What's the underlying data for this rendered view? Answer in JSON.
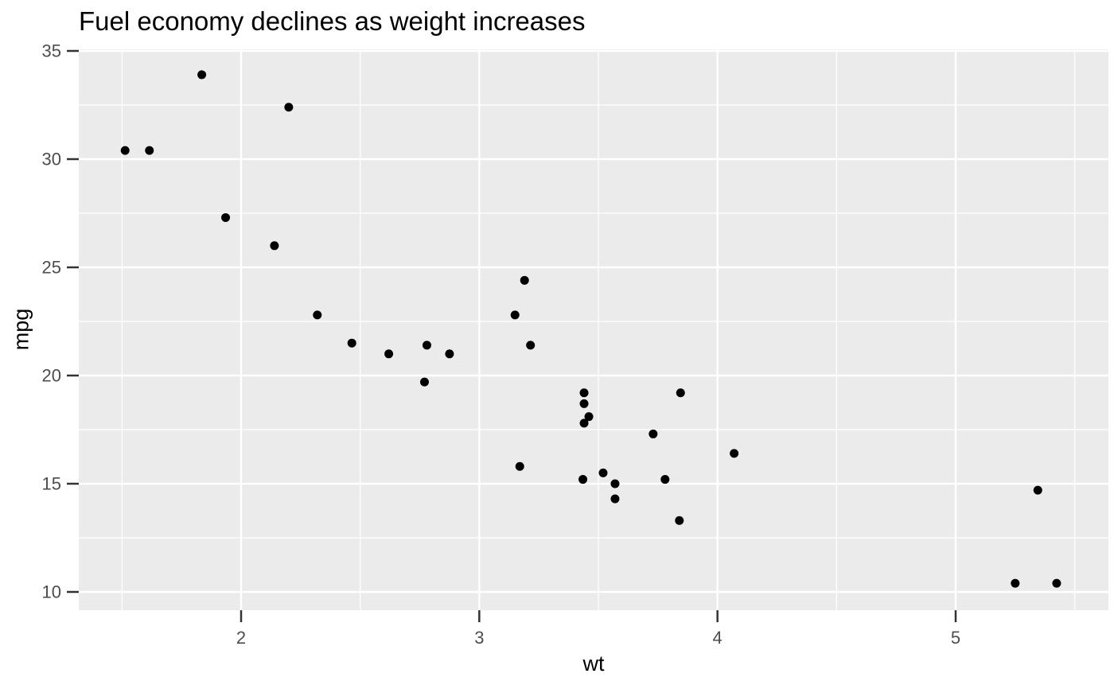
{
  "chart_data": {
    "type": "scatter",
    "title": "Fuel economy declines as weight increases",
    "xlabel": "wt",
    "ylabel": "mpg",
    "xlim": [
      1.3185,
      5.6414
    ],
    "ylim": [
      9.154,
      35.074
    ],
    "x_major_ticks": [
      2,
      3,
      4,
      5
    ],
    "x_minor_ticks": [
      1.5,
      2.5,
      3.5,
      4.5,
      5.5
    ],
    "y_major_ticks": [
      10,
      15,
      20,
      25,
      30,
      35
    ],
    "y_minor_ticks": [
      12.5,
      17.5,
      22.5,
      27.5,
      32.5
    ],
    "grid": "on",
    "legend": "none",
    "points": [
      [
        2.62,
        21.0
      ],
      [
        2.875,
        21.0
      ],
      [
        2.32,
        22.8
      ],
      [
        3.215,
        21.4
      ],
      [
        3.44,
        18.7
      ],
      [
        3.46,
        18.1
      ],
      [
        3.57,
        14.3
      ],
      [
        3.19,
        24.4
      ],
      [
        3.15,
        22.8
      ],
      [
        3.44,
        19.2
      ],
      [
        3.44,
        17.8
      ],
      [
        4.07,
        16.4
      ],
      [
        3.73,
        17.3
      ],
      [
        3.78,
        15.2
      ],
      [
        5.25,
        10.4
      ],
      [
        5.424,
        10.4
      ],
      [
        5.345,
        14.7
      ],
      [
        2.2,
        32.4
      ],
      [
        1.615,
        30.4
      ],
      [
        1.835,
        33.9
      ],
      [
        2.465,
        21.5
      ],
      [
        3.52,
        15.5
      ],
      [
        3.435,
        15.2
      ],
      [
        3.84,
        13.3
      ],
      [
        3.845,
        19.2
      ],
      [
        1.935,
        27.3
      ],
      [
        2.14,
        26.0
      ],
      [
        1.513,
        30.4
      ],
      [
        3.17,
        15.8
      ],
      [
        2.77,
        19.7
      ],
      [
        3.57,
        15.0
      ],
      [
        2.78,
        21.4
      ]
    ],
    "colors": {
      "background": "#FFFFFF",
      "panel_bg": "#EBEBEB",
      "gridline": "#FFFFFF",
      "point": "#000000",
      "tick_mark": "#333333",
      "tick_label": "#4D4D4D",
      "text": "#000000"
    }
  }
}
